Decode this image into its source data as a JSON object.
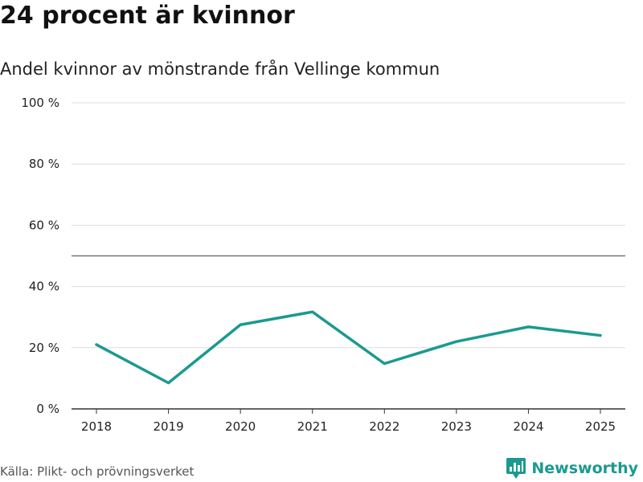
{
  "header": {
    "title": "24 procent är kvinnor",
    "subtitle": "Andel kvinnor av mönstrande från Vellinge kommun"
  },
  "footer": {
    "source": "Källa: Plikt- och prövningsverket",
    "brand": "Newsworthy",
    "brand_icon": "newsworthy-logo-icon"
  },
  "colors": {
    "line": "#1a9a90",
    "grid": "#dddddd",
    "reference_line": "#777777",
    "axis": "#333333"
  },
  "chart_data": {
    "type": "line",
    "title": "24 procent är kvinnor",
    "subtitle": "Andel kvinnor av mönstrande från Vellinge kommun",
    "xlabel": "",
    "ylabel": "",
    "categories": [
      "2018",
      "2019",
      "2020",
      "2021",
      "2022",
      "2023",
      "2024",
      "2025"
    ],
    "values": [
      21,
      8.5,
      27.5,
      31.7,
      14.8,
      22,
      26.8,
      24
    ],
    "ylim": [
      0,
      100
    ],
    "yticks": [
      0,
      20,
      40,
      60,
      80,
      100
    ],
    "ytick_labels": [
      "0 %",
      "20 %",
      "40 %",
      "60 %",
      "80 %",
      "100 %"
    ],
    "reference_line": 50,
    "grid": true,
    "legend": "none"
  }
}
